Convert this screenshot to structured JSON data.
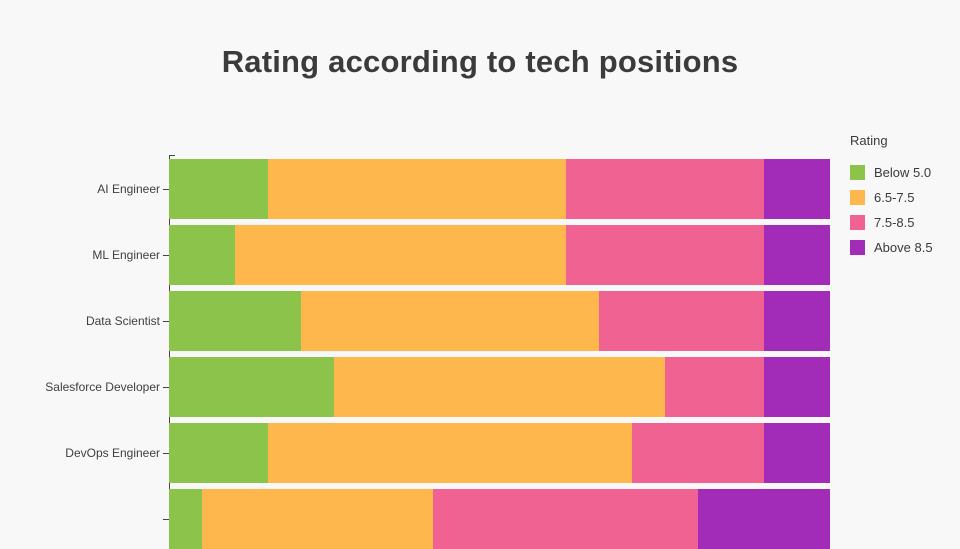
{
  "chart": {
    "title": "Rating according to tech positions",
    "background_color": "#f8f8f8",
    "title_color": "#3b3b3b",
    "axis_color": "#444444"
  },
  "legend": {
    "title": "Rating",
    "items": [
      {
        "label": "Below 5.0",
        "color": "#8CC34B"
      },
      {
        "label": "6.5-7.5",
        "color": "#FDB74D"
      },
      {
        "label": "7.5-8.5",
        "color": "#F06292"
      },
      {
        "label": "Above 8.5",
        "color": "#A22BB8"
      }
    ]
  },
  "chart_data": {
    "type": "bar",
    "orientation": "horizontal",
    "stacked": true,
    "normalized_to_100_percent": true,
    "title": "Rating according to tech positions",
    "xlabel": "",
    "ylabel": "",
    "xlim": [
      0,
      100
    ],
    "grid": false,
    "legend_position": "right",
    "legend_title": "Rating",
    "categories": [
      "AI Engineer",
      "ML Engineer",
      "Data Scientist",
      "Salesforce Developer",
      "DevOps Engineer",
      ""
    ],
    "note_last_category": "sixth bar is clipped at the bottom edge of the image; its label is not visible",
    "series": [
      {
        "name": "Below 5.0",
        "color": "#8CC34B",
        "values": [
          15,
          10,
          20,
          25,
          15,
          5
        ]
      },
      {
        "name": "6.5-7.5",
        "color": "#FDB74D",
        "values": [
          45,
          50,
          45,
          50,
          55,
          35
        ]
      },
      {
        "name": "7.5-8.5",
        "color": "#F06292",
        "values": [
          30,
          30,
          25,
          15,
          20,
          40
        ]
      },
      {
        "name": "Above 8.5",
        "color": "#A22BB8",
        "values": [
          10,
          10,
          10,
          10,
          10,
          20
        ]
      }
    ]
  }
}
